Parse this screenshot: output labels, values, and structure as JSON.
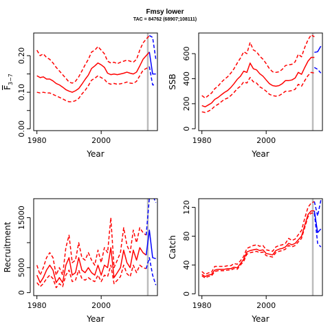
{
  "figure": {
    "title": "Fmsy lower",
    "subtitle": "TAC = 84762 (68907;108111)"
  },
  "colors": {
    "historic": "#ff0000",
    "projection": "#0000ff",
    "marker": "#bbbbbb"
  },
  "chart_data": [
    {
      "type": "line",
      "name": "fbar",
      "title": "",
      "xlabel": "Year",
      "ylabel": "F̅3−7",
      "ylabel_main": "F",
      "ylabel_sub": "3−7",
      "xlim": [
        1979,
        2017.5
      ],
      "ylim": [
        -0.005,
        0.262
      ],
      "xticks": [
        1980,
        2000
      ],
      "xtick_labels": [
        "1980",
        "2000"
      ],
      "yticks": [
        0,
        0.05,
        0.1,
        0.15,
        0.2
      ],
      "ytick_labels": [
        "0.00",
        "",
        "0.10",
        "",
        "0.20"
      ],
      "marker_x": 2014.5,
      "historic": {
        "x": [
          1980,
          1981,
          1982,
          1983,
          1984,
          1985,
          1986,
          1987,
          1988,
          1989,
          1990,
          1991,
          1992,
          1993,
          1994,
          1995,
          1996,
          1997,
          1998,
          1999,
          2000,
          2001,
          2002,
          2003,
          2004,
          2005,
          2006,
          2007,
          2008,
          2009,
          2010,
          2011,
          2012,
          2013,
          2014,
          2015
        ],
        "median": [
          0.145,
          0.14,
          0.142,
          0.136,
          0.136,
          0.131,
          0.124,
          0.12,
          0.114,
          0.107,
          0.103,
          0.1,
          0.104,
          0.11,
          0.122,
          0.135,
          0.147,
          0.165,
          0.172,
          0.18,
          0.175,
          0.168,
          0.152,
          0.148,
          0.15,
          0.148,
          0.15,
          0.152,
          0.155,
          0.152,
          0.15,
          0.155,
          0.172,
          0.19,
          0.2,
          0.21
        ],
        "lower": [
          0.1,
          0.098,
          0.1,
          0.098,
          0.098,
          0.094,
          0.09,
          0.086,
          0.082,
          0.077,
          0.074,
          0.074,
          0.077,
          0.083,
          0.095,
          0.105,
          0.118,
          0.133,
          0.138,
          0.145,
          0.14,
          0.135,
          0.125,
          0.122,
          0.124,
          0.122,
          0.123,
          0.125,
          0.128,
          0.125,
          0.124,
          0.13,
          0.145,
          0.16,
          0.165,
          0.17
        ],
        "upper": [
          0.215,
          0.2,
          0.205,
          0.195,
          0.19,
          0.18,
          0.168,
          0.158,
          0.148,
          0.138,
          0.128,
          0.125,
          0.13,
          0.142,
          0.158,
          0.175,
          0.19,
          0.21,
          0.215,
          0.225,
          0.215,
          0.205,
          0.185,
          0.18,
          0.182,
          0.178,
          0.182,
          0.185,
          0.188,
          0.185,
          0.182,
          0.19,
          0.215,
          0.235,
          0.245,
          0.255
        ]
      },
      "projection": {
        "x": [
          2015,
          2016,
          2017
        ],
        "median": [
          0.21,
          0.15,
          0.15
        ],
        "lower": [
          0.17,
          0.12,
          0.12
        ],
        "upper": [
          0.255,
          0.25,
          0.19
        ]
      }
    },
    {
      "type": "line",
      "name": "ssb",
      "title": "",
      "xlabel": "Year",
      "ylabel": "SSB",
      "xlim": [
        1979,
        2017.5
      ],
      "ylim": [
        -15,
        765
      ],
      "xticks": [
        1980,
        2000
      ],
      "xtick_labels": [
        "1980",
        "2000"
      ],
      "yticks": [
        0,
        200,
        400,
        600
      ],
      "ytick_labels": [
        "0",
        "200",
        "400",
        "600"
      ],
      "marker_x": 2014.5,
      "historic": {
        "x": [
          1980,
          1981,
          1982,
          1983,
          1984,
          1985,
          1986,
          1987,
          1988,
          1989,
          1990,
          1991,
          1992,
          1993,
          1994,
          1995,
          1996,
          1997,
          1998,
          1999,
          2000,
          2001,
          2002,
          2003,
          2004,
          2005,
          2006,
          2007,
          2008,
          2009,
          2010,
          2011,
          2012,
          2013,
          2014,
          2015
        ],
        "median": [
          185,
          175,
          190,
          205,
          235,
          250,
          270,
          290,
          305,
          330,
          360,
          395,
          420,
          460,
          450,
          525,
          480,
          470,
          440,
          420,
          390,
          360,
          345,
          340,
          345,
          360,
          385,
          385,
          390,
          405,
          450,
          435,
          490,
          540,
          570,
          570
        ],
        "lower": [
          135,
          130,
          140,
          155,
          180,
          195,
          215,
          235,
          245,
          265,
          290,
          320,
          340,
          375,
          365,
          410,
          375,
          365,
          335,
          320,
          300,
          275,
          265,
          260,
          265,
          280,
          300,
          300,
          305,
          315,
          355,
          340,
          385,
          425,
          450,
          445
        ],
        "upper": [
          265,
          245,
          265,
          285,
          320,
          340,
          370,
          395,
          415,
          445,
          480,
          525,
          565,
          615,
          600,
          690,
          630,
          615,
          580,
          555,
          520,
          480,
          455,
          450,
          455,
          475,
          505,
          510,
          515,
          535,
          595,
          575,
          650,
          710,
          750,
          735
        ]
      },
      "projection": {
        "x": [
          2015,
          2016,
          2017
        ],
        "median": [
          610,
          615,
          660
        ],
        "lower": [
          490,
          475,
          445
        ],
        "upper": [
          765,
          775,
          810
        ]
      }
    },
    {
      "type": "line",
      "name": "recruitment",
      "title": "",
      "xlabel": "Year",
      "ylabel": "Recruitment",
      "xlim": [
        1979,
        2017.5
      ],
      "ylim": [
        -600,
        18800
      ],
      "xticks": [
        1980,
        2000
      ],
      "xtick_labels": [
        "1980",
        "2000"
      ],
      "yticks": [
        0,
        5000,
        10000,
        15000
      ],
      "ytick_labels": [
        "0",
        "5000",
        "",
        "15000"
      ],
      "marker_x": 2014.5,
      "historic": {
        "x": [
          1980,
          1981,
          1982,
          1983,
          1984,
          1985,
          1986,
          1987,
          1988,
          1989,
          1990,
          1991,
          1992,
          1993,
          1994,
          1995,
          1996,
          1997,
          1998,
          1999,
          2000,
          2001,
          2002,
          2003,
          2004,
          2005,
          2006,
          2007,
          2008,
          2009,
          2010,
          2011,
          2012,
          2013,
          2014
        ],
        "median": [
          3500,
          2000,
          3000,
          4500,
          5500,
          4500,
          2000,
          3000,
          2000,
          5500,
          7000,
          3500,
          4000,
          7000,
          4500,
          4000,
          5000,
          4000,
          3500,
          5500,
          3500,
          5500,
          5000,
          9000,
          3000,
          4000,
          5000,
          8500,
          6000,
          5000,
          8500,
          6500,
          9000,
          8000,
          7500
        ],
        "lower": [
          2000,
          1200,
          1800,
          2800,
          3500,
          2800,
          1000,
          1800,
          1200,
          3500,
          4500,
          2200,
          2500,
          4500,
          2800,
          2500,
          3000,
          2500,
          2200,
          3500,
          2200,
          3500,
          3200,
          5500,
          1800,
          2500,
          3200,
          5500,
          3800,
          3200,
          5500,
          4000,
          5500,
          5000,
          4800
        ],
        "upper": [
          5500,
          3500,
          5000,
          7000,
          8000,
          7000,
          3500,
          5000,
          3500,
          9000,
          11500,
          6000,
          6500,
          10000,
          7000,
          6500,
          8000,
          6500,
          5500,
          8500,
          6000,
          9000,
          8000,
          15000,
          5000,
          6500,
          8000,
          13000,
          9500,
          8000,
          12500,
          10000,
          13000,
          12000,
          11500
        ]
      },
      "projection": {
        "x": [
          2014,
          2015,
          2016,
          2017
        ],
        "median": [
          7500,
          12500,
          7000,
          6800
        ],
        "lower": [
          4800,
          7000,
          3500,
          1500
        ],
        "upper": [
          11500,
          19000,
          19500,
          18000
        ]
      }
    },
    {
      "type": "line",
      "name": "catch",
      "title": "",
      "xlabel": "Year",
      "ylabel": "Catch",
      "xlim": [
        1979,
        2017.5
      ],
      "ylim": [
        -2.5,
        132
      ],
      "xticks": [
        1980,
        2000
      ],
      "xtick_labels": [
        "1980",
        "2000"
      ],
      "yticks": [
        0,
        40,
        80,
        120
      ],
      "ytick_labels": [
        "0",
        "40",
        "80",
        "120"
      ],
      "marker_x": 2014.5,
      "historic": {
        "x": [
          1980,
          1981,
          1982,
          1983,
          1984,
          1985,
          1986,
          1987,
          1988,
          1989,
          1990,
          1991,
          1992,
          1993,
          1994,
          1995,
          1996,
          1997,
          1998,
          1999,
          2000,
          2001,
          2002,
          2003,
          2004,
          2005,
          2006,
          2007,
          2008,
          2009,
          2010,
          2011,
          2012,
          2013,
          2014,
          2015
        ],
        "median": [
          27,
          24,
          26,
          27,
          33,
          34,
          34,
          34,
          35,
          35,
          37,
          36,
          42,
          48,
          58,
          60,
          61,
          62,
          60,
          61,
          56,
          55,
          54,
          60,
          62,
          63,
          65,
          70,
          68,
          70,
          75,
          80,
          95,
          110,
          115,
          115
        ],
        "lower": [
          25,
          22,
          24,
          25,
          31,
          32,
          32,
          32,
          33,
          33,
          35,
          34,
          40,
          45,
          55,
          57,
          58,
          59,
          57,
          58,
          53,
          52,
          51,
          57,
          59,
          60,
          62,
          67,
          65,
          67,
          72,
          77,
          92,
          107,
          112,
          112
        ],
        "upper": [
          31,
          27,
          29,
          30,
          38,
          38,
          38,
          38,
          39,
          39,
          42,
          41,
          46,
          52,
          63,
          65,
          67,
          68,
          66,
          67,
          61,
          60,
          59,
          65,
          67,
          68,
          70,
          77,
          74,
          76,
          82,
          88,
          105,
          120,
          126,
          128
        ]
      },
      "projection": {
        "x": [
          2015,
          2016,
          2017
        ],
        "median": [
          115,
          85,
          90
        ],
        "lower": [
          112,
          70,
          65
        ],
        "upper": [
          128,
          108,
          130
        ]
      }
    }
  ]
}
